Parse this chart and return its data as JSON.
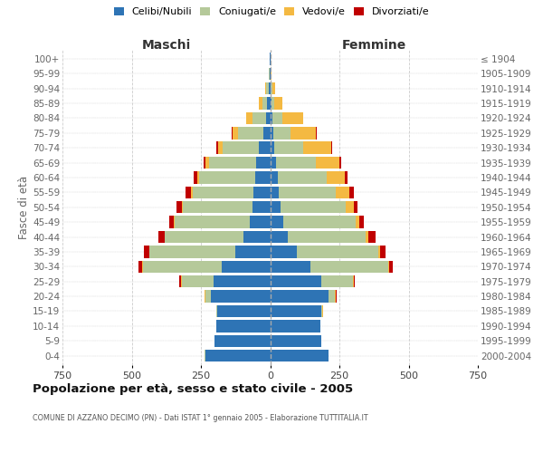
{
  "age_groups": [
    "0-4",
    "5-9",
    "10-14",
    "15-19",
    "20-24",
    "25-29",
    "30-34",
    "35-39",
    "40-44",
    "45-49",
    "50-54",
    "55-59",
    "60-64",
    "65-69",
    "70-74",
    "75-79",
    "80-84",
    "85-89",
    "90-94",
    "95-99",
    "100+"
  ],
  "birth_years": [
    "2000-2004",
    "1995-1999",
    "1990-1994",
    "1985-1989",
    "1980-1984",
    "1975-1979",
    "1970-1974",
    "1965-1969",
    "1960-1964",
    "1955-1959",
    "1950-1954",
    "1945-1949",
    "1940-1944",
    "1935-1939",
    "1930-1934",
    "1925-1929",
    "1920-1924",
    "1915-1919",
    "1910-1914",
    "1905-1909",
    "≤ 1904"
  ],
  "maschi": {
    "celibi": [
      235,
      200,
      195,
      190,
      215,
      205,
      175,
      125,
      95,
      75,
      65,
      60,
      55,
      50,
      40,
      25,
      15,
      10,
      6,
      2,
      1
    ],
    "coniugati": [
      1,
      1,
      1,
      4,
      20,
      115,
      285,
      310,
      285,
      270,
      250,
      220,
      200,
      170,
      130,
      90,
      50,
      18,
      8,
      2,
      0
    ],
    "vedovi": [
      0,
      0,
      0,
      1,
      1,
      2,
      2,
      2,
      2,
      3,
      5,
      7,
      8,
      15,
      18,
      20,
      20,
      12,
      5,
      1,
      0
    ],
    "divorziati": [
      0,
      0,
      0,
      1,
      2,
      5,
      15,
      18,
      22,
      18,
      18,
      18,
      12,
      5,
      5,
      3,
      2,
      0,
      0,
      0,
      0
    ]
  },
  "femmine": {
    "nubili": [
      210,
      185,
      180,
      185,
      210,
      185,
      145,
      95,
      65,
      48,
      38,
      32,
      28,
      20,
      15,
      10,
      8,
      5,
      3,
      1,
      1
    ],
    "coniugate": [
      1,
      1,
      1,
      4,
      25,
      115,
      280,
      295,
      280,
      260,
      235,
      205,
      175,
      145,
      105,
      65,
      35,
      10,
      5,
      1,
      0
    ],
    "vedove": [
      0,
      0,
      0,
      1,
      2,
      2,
      4,
      6,
      8,
      15,
      28,
      48,
      65,
      85,
      100,
      90,
      75,
      28,
      10,
      3,
      0
    ],
    "divorziate": [
      0,
      0,
      0,
      1,
      2,
      5,
      15,
      20,
      28,
      15,
      15,
      18,
      12,
      5,
      3,
      2,
      1,
      0,
      0,
      0,
      0
    ]
  },
  "colors": {
    "celibi": "#2E74B5",
    "coniugati": "#B5C99A",
    "vedovi": "#F4B942",
    "divorziati": "#C00000"
  },
  "legend_labels": [
    "Celibi/Nubili",
    "Coniugati/e",
    "Vedovi/e",
    "Divorziati/e"
  ],
  "title": "Popolazione per età, sesso e stato civile - 2005",
  "subtitle": "COMUNE DI AZZANO DECIMO (PN) - Dati ISTAT 1° gennaio 2005 - Elaborazione TUTTITALIA.IT",
  "ylabel_left": "Fasce di età",
  "header_left": "Maschi",
  "header_right": "Femmine",
  "xlim": 750,
  "background_color": "#ffffff",
  "grid_color": "#cccccc",
  "bar_height": 0.82
}
